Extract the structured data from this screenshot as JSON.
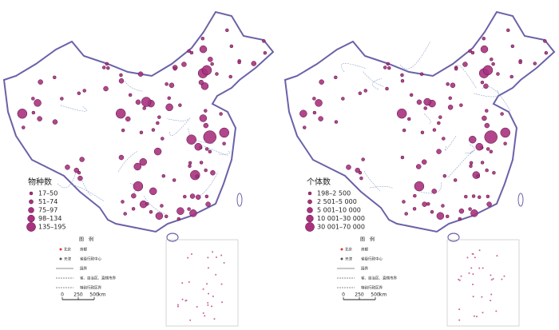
{
  "maps": [
    {
      "legend_title": "物种数",
      "classes": [
        "17–50",
        "51–74",
        "75–97",
        "98–134",
        "135–195"
      ]
    },
    {
      "legend_title": "个体数",
      "classes": [
        "198–2 500",
        "2 501–5 000",
        "5 001–10 000",
        "10 001–30 000",
        "30 001–70 000"
      ]
    }
  ],
  "key": {
    "title": "图　例",
    "items": [
      {
        "symbol_label": "北京",
        "label": "首都"
      },
      {
        "symbol_label": "天津",
        "label": "省级行政中心"
      },
      {
        "label": "国界"
      },
      {
        "label": "省、自治区、直辖市界"
      },
      {
        "label": "特别行政区界"
      }
    ]
  },
  "scale": {
    "ticks": [
      "0",
      "250",
      "500"
    ],
    "unit": "km"
  }
}
